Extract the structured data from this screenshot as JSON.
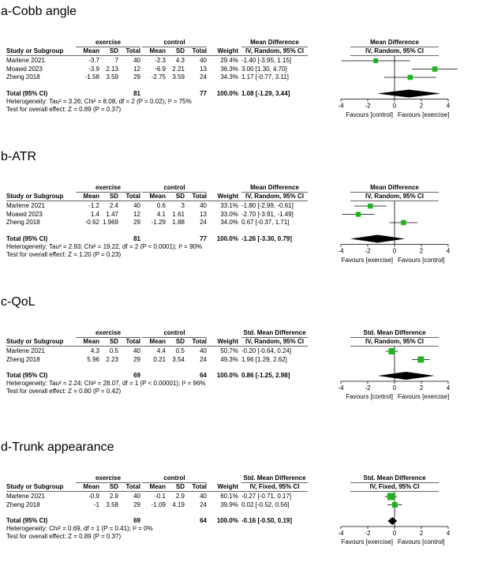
{
  "chart_data": [
    {
      "type": "forest",
      "title": "a-Cobb angle",
      "group_left": "exercise",
      "group_right": "control",
      "headers": {
        "study": "Study or Subgroup",
        "mean": "Mean",
        "sd": "SD",
        "total": "Total",
        "mean2": "Mean",
        "sd2": "SD",
        "total2": "Total",
        "weight": "Weight",
        "effect_title": "Mean Difference",
        "effect_method": "IV, Random, 95% CI",
        "plot_title": "Mean Difference",
        "plot_method": "IV, Random, 95% CI"
      },
      "studies": [
        {
          "name": "Marlene 2021",
          "m1": "-3.7",
          "sd1": "7",
          "n1": "40",
          "m2": "-2.3",
          "sd2": "4.3",
          "n2": "40",
          "weight": "29.4%",
          "ci_text": "-1.40 [-3.95, 1.15]",
          "est": -1.4,
          "lo": -3.95,
          "hi": 1.15
        },
        {
          "name": "Moawd 2023",
          "m1": "-3.9",
          "sd1": "2.13",
          "n1": "12",
          "m2": "-6.9",
          "sd2": "2.21",
          "n2": "13",
          "weight": "36.3%",
          "ci_text": "3.00 [1.30, 4.70]",
          "est": 3.0,
          "lo": 1.3,
          "hi": 4.7
        },
        {
          "name": "Zheng 2018",
          "m1": "-1.58",
          "sd1": "3.59",
          "n1": "29",
          "m2": "-2.75",
          "sd2": "3.59",
          "n2": "24",
          "weight": "34.3%",
          "ci_text": "1.17 [-0.77, 3.11]",
          "est": 1.17,
          "lo": -0.77,
          "hi": 3.11
        }
      ],
      "total": {
        "label": "Total (95% CI)",
        "n1": "81",
        "n2": "77",
        "weight": "100.0%",
        "ci_text": "1.08 [-1.29, 3.44]",
        "est": 1.08,
        "lo": -1.29,
        "hi": 3.44
      },
      "heterogeneity": "Heterogeneity: Tau² = 3.26; Chi² = 8.08, df = 2 (P = 0.02); I² = 75%",
      "overall": "Test for overall effect: Z = 0.89 (P = 0.37)",
      "xlim": [
        -4,
        4
      ],
      "ticks": [
        -4,
        -2,
        0,
        2,
        4
      ],
      "favours_left": "Favours [control]",
      "favours_right": "Favours [exercise]"
    },
    {
      "type": "forest",
      "title": "b-ATR",
      "group_left": "exercise",
      "group_right": "control",
      "headers": {
        "study": "Study or Subgroup",
        "mean": "Mean",
        "sd": "SD",
        "total": "Total",
        "mean2": "Mean",
        "sd2": "SD",
        "total2": "Total",
        "weight": "Weight",
        "effect_title": "Mean Difference",
        "effect_method": "IV, Random, 95% CI",
        "plot_title": "Mean Difference",
        "plot_method": "IV, Random, 95% CI"
      },
      "studies": [
        {
          "name": "Marlene 2021",
          "m1": "-1.2",
          "sd1": "2.4",
          "n1": "40",
          "m2": "0.6",
          "sd2": "3",
          "n2": "40",
          "weight": "33.1%",
          "ci_text": "-1.80 [-2.99, -0.61]",
          "est": -1.8,
          "lo": -2.99,
          "hi": -0.61
        },
        {
          "name": "Moawd 2023",
          "m1": "1.4",
          "sd1": "1.47",
          "n1": "12",
          "m2": "4.1",
          "sd2": "1.61",
          "n2": "13",
          "weight": "33.0%",
          "ci_text": "-2.70 [-3.91, -1.49]",
          "est": -2.7,
          "lo": -3.91,
          "hi": -1.49
        },
        {
          "name": "Zheng 2018",
          "m1": "-0.62",
          "sd1": "1.969",
          "n1": "29",
          "m2": "-1.29",
          "sd2": "1.88",
          "n2": "24",
          "weight": "34.0%",
          "ci_text": "0.67 [-0.37, 1.71]",
          "est": 0.67,
          "lo": -0.37,
          "hi": 1.71
        }
      ],
      "total": {
        "label": "Total (95% CI)",
        "n1": "81",
        "n2": "77",
        "weight": "100.0%",
        "ci_text": "-1.26 [-3.30, 0.79]",
        "est": -1.26,
        "lo": -3.3,
        "hi": 0.79
      },
      "heterogeneity": "Heterogeneity: Tau² = 2.93; Chi² = 19.22, df = 2 (P < 0.0001); I² = 90%",
      "overall": "Test for overall effect: Z = 1.20 (P = 0.23)",
      "xlim": [
        -4,
        4
      ],
      "ticks": [
        -4,
        -2,
        0,
        2,
        4
      ],
      "favours_left": "Favours [exercise]",
      "favours_right": "Favours [control]"
    },
    {
      "type": "forest",
      "title": "c-QoL",
      "group_left": "exercise",
      "group_right": "control",
      "headers": {
        "study": "Study or Subgroup",
        "mean": "Mean",
        "sd": "SD",
        "total": "Total",
        "mean2": "Mean",
        "sd2": "SD",
        "total2": "Total",
        "weight": "Weight",
        "effect_title": "Std. Mean Difference",
        "effect_method": "IV, Random, 95% CI",
        "plot_title": "Std. Mean Difference",
        "plot_method": "IV, Random, 95% CI"
      },
      "studies": [
        {
          "name": "Marlene 2021",
          "m1": "4.3",
          "sd1": "0.5",
          "n1": "40",
          "m2": "4.4",
          "sd2": "0.5",
          "n2": "40",
          "weight": "50.7%",
          "ci_text": "-0.20 [-0.64, 0.24]",
          "est": -0.2,
          "lo": -0.64,
          "hi": 0.24
        },
        {
          "name": "Zheng 2018",
          "m1": "5.96",
          "sd1": "2.23",
          "n1": "29",
          "m2": "0.21",
          "sd2": "3.54",
          "n2": "24",
          "weight": "49.3%",
          "ci_text": "1.96 [1.29, 2.62]",
          "est": 1.96,
          "lo": 1.29,
          "hi": 2.62
        }
      ],
      "total": {
        "label": "Total (95% CI)",
        "n1": "69",
        "n2": "64",
        "weight": "100.0%",
        "ci_text": "0.86 [-1.25, 2.98]",
        "est": 0.86,
        "lo": -1.25,
        "hi": 2.98
      },
      "heterogeneity": "Heterogeneity: Tau² = 2.24; Chi² = 28.07, df = 1 (P < 0.00001); I² = 96%",
      "overall": "Test for overall effect: Z = 0.80 (P = 0.42)",
      "xlim": [
        -4,
        4
      ],
      "ticks": [
        -4,
        -2,
        0,
        2,
        4
      ],
      "favours_left": "Favours [control]",
      "favours_right": "Favours [exercise]"
    },
    {
      "type": "forest",
      "title": "d-Trunk appearance",
      "group_left": "exercise",
      "group_right": "control",
      "headers": {
        "study": "Study or Subgroup",
        "mean": "Mean",
        "sd": "SD",
        "total": "Total",
        "mean2": "Mean",
        "sd2": "SD",
        "total2": "Total",
        "weight": "Weight",
        "effect_title": "Std. Mean Difference",
        "effect_method": "IV, Fixed, 95% CI",
        "plot_title": "Std. Mean Difference",
        "plot_method": "IV, Fixed, 95% CI"
      },
      "studies": [
        {
          "name": "Marlene 2021",
          "m1": "-0.9",
          "sd1": "2.9",
          "n1": "40",
          "m2": "-0.1",
          "sd2": "2.9",
          "n2": "40",
          "weight": "60.1%",
          "ci_text": "-0.27 [-0.71, 0.17]",
          "est": -0.27,
          "lo": -0.71,
          "hi": 0.17
        },
        {
          "name": "Zheng 2018",
          "m1": "-1",
          "sd1": "3.58",
          "n1": "29",
          "m2": "-1.09",
          "sd2": "4.19",
          "n2": "24",
          "weight": "39.9%",
          "ci_text": "0.02 [-0.52, 0.56]",
          "est": 0.02,
          "lo": -0.52,
          "hi": 0.56
        }
      ],
      "total": {
        "label": "Total (95% CI)",
        "n1": "69",
        "n2": "64",
        "weight": "100.0%",
        "ci_text": "-0.16 [-0.50, 0.19]",
        "est": -0.16,
        "lo": -0.5,
        "hi": 0.19
      },
      "heterogeneity": "Heterogeneity: Chi² = 0.69, df = 1 (P = 0.41); I² = 0%",
      "overall": "Test for overall effect: Z = 0.89 (P = 0.37)",
      "xlim": [
        -4,
        4
      ],
      "ticks": [
        -4,
        -2,
        0,
        2,
        4
      ],
      "favours_left": "Favours [exercise]",
      "favours_right": "Favours [control]"
    }
  ],
  "colors": {
    "square": "#1fb31f",
    "diamond": "#000000",
    "line": "#000000",
    "rule": "#666666"
  }
}
